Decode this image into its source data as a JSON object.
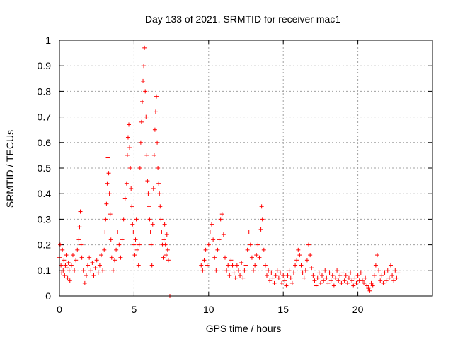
{
  "chart_data": {
    "type": "scatter",
    "title": "Day 133 of 2021, SRMTID for receiver mac1",
    "xlabel": "GPS time / hours",
    "ylabel": "SRMTID / TECUs",
    "xlim": [
      0,
      25
    ],
    "ylim": [
      0,
      1
    ],
    "xticks": [
      "0",
      "5",
      "10",
      "15",
      "20"
    ],
    "yticks": [
      "0",
      "0.1",
      "0.2",
      "0.3",
      "0.4",
      "0.5",
      "0.6",
      "0.7",
      "0.8",
      "0.9",
      "1"
    ],
    "grid": true,
    "marker": "+",
    "colors": {
      "series": "#ff0000"
    },
    "series": [
      {
        "name": "SRMTID",
        "points": [
          [
            0.0,
            0.15
          ],
          [
            0.05,
            0.2
          ],
          [
            0.1,
            0.12
          ],
          [
            0.15,
            0.09
          ],
          [
            0.2,
            0.18
          ],
          [
            0.25,
            0.1
          ],
          [
            0.3,
            0.14
          ],
          [
            0.35,
            0.08
          ],
          [
            0.4,
            0.12
          ],
          [
            0.45,
            0.16
          ],
          [
            0.5,
            0.11
          ],
          [
            0.55,
            0.07
          ],
          [
            0.6,
            0.13
          ],
          [
            0.65,
            0.1
          ],
          [
            0.7,
            0.06
          ],
          [
            0.8,
            0.12
          ],
          [
            0.9,
            0.16
          ],
          [
            1.0,
            0.1
          ],
          [
            1.1,
            0.14
          ],
          [
            1.2,
            0.18
          ],
          [
            1.3,
            0.22
          ],
          [
            1.35,
            0.27
          ],
          [
            1.4,
            0.33
          ],
          [
            1.45,
            0.2
          ],
          [
            1.5,
            0.15
          ],
          [
            1.6,
            0.1
          ],
          [
            1.7,
            0.05
          ],
          [
            1.8,
            0.08
          ],
          [
            1.9,
            0.12
          ],
          [
            2.0,
            0.15
          ],
          [
            2.1,
            0.1
          ],
          [
            2.2,
            0.13
          ],
          [
            2.3,
            0.08
          ],
          [
            2.4,
            0.11
          ],
          [
            2.5,
            0.14
          ],
          [
            2.6,
            0.09
          ],
          [
            2.7,
            0.12
          ],
          [
            2.8,
            0.16
          ],
          [
            2.9,
            0.1
          ],
          [
            3.0,
            0.18
          ],
          [
            3.05,
            0.25
          ],
          [
            3.1,
            0.3
          ],
          [
            3.15,
            0.36
          ],
          [
            3.2,
            0.44
          ],
          [
            3.25,
            0.54
          ],
          [
            3.3,
            0.48
          ],
          [
            3.35,
            0.4
          ],
          [
            3.4,
            0.32
          ],
          [
            3.45,
            0.22
          ],
          [
            3.5,
            0.15
          ],
          [
            3.6,
            0.1
          ],
          [
            3.7,
            0.14
          ],
          [
            3.8,
            0.18
          ],
          [
            3.9,
            0.25
          ],
          [
            4.0,
            0.2
          ],
          [
            4.1,
            0.15
          ],
          [
            4.2,
            0.22
          ],
          [
            4.3,
            0.3
          ],
          [
            4.4,
            0.38
          ],
          [
            4.5,
            0.44
          ],
          [
            4.55,
            0.55
          ],
          [
            4.6,
            0.62
          ],
          [
            4.65,
            0.67
          ],
          [
            4.7,
            0.58
          ],
          [
            4.75,
            0.5
          ],
          [
            4.8,
            0.42
          ],
          [
            4.85,
            0.35
          ],
          [
            4.9,
            0.28
          ],
          [
            4.95,
            0.25
          ],
          [
            5.0,
            0.2
          ],
          [
            5.05,
            0.16
          ],
          [
            5.1,
            0.22
          ],
          [
            5.15,
            0.3
          ],
          [
            5.2,
            0.18
          ],
          [
            5.3,
            0.12
          ],
          [
            5.35,
            0.2
          ],
          [
            5.4,
            0.5
          ],
          [
            5.45,
            0.6
          ],
          [
            5.5,
            0.68
          ],
          [
            5.55,
            0.76
          ],
          [
            5.6,
            0.84
          ],
          [
            5.65,
            0.9
          ],
          [
            5.7,
            0.97
          ],
          [
            5.75,
            0.8
          ],
          [
            5.8,
            0.7
          ],
          [
            5.85,
            0.55
          ],
          [
            5.9,
            0.45
          ],
          [
            5.95,
            0.4
          ],
          [
            6.0,
            0.35
          ],
          [
            6.05,
            0.3
          ],
          [
            6.1,
            0.25
          ],
          [
            6.15,
            0.2
          ],
          [
            6.2,
            0.12
          ],
          [
            6.25,
            0.28
          ],
          [
            6.3,
            0.42
          ],
          [
            6.35,
            0.55
          ],
          [
            6.4,
            0.65
          ],
          [
            6.45,
            0.72
          ],
          [
            6.5,
            0.78
          ],
          [
            6.55,
            0.6
          ],
          [
            6.6,
            0.5
          ],
          [
            6.65,
            0.44
          ],
          [
            6.7,
            0.4
          ],
          [
            6.75,
            0.35
          ],
          [
            6.8,
            0.3
          ],
          [
            6.85,
            0.25
          ],
          [
            6.9,
            0.2
          ],
          [
            6.95,
            0.15
          ],
          [
            7.0,
            0.22
          ],
          [
            7.05,
            0.28
          ],
          [
            7.1,
            0.2
          ],
          [
            7.15,
            0.16
          ],
          [
            7.2,
            0.24
          ],
          [
            7.25,
            0.18
          ],
          [
            7.3,
            0.14
          ],
          [
            7.4,
            0.0
          ],
          [
            9.5,
            0.12
          ],
          [
            9.6,
            0.1
          ],
          [
            9.7,
            0.14
          ],
          [
            9.8,
            0.18
          ],
          [
            9.9,
            0.12
          ],
          [
            10.0,
            0.2
          ],
          [
            10.1,
            0.25
          ],
          [
            10.2,
            0.28
          ],
          [
            10.3,
            0.22
          ],
          [
            10.4,
            0.15
          ],
          [
            10.5,
            0.1
          ],
          [
            10.6,
            0.18
          ],
          [
            10.7,
            0.22
          ],
          [
            10.8,
            0.3
          ],
          [
            10.9,
            0.32
          ],
          [
            11.0,
            0.24
          ],
          [
            11.1,
            0.15
          ],
          [
            11.2,
            0.1
          ],
          [
            11.3,
            0.12
          ],
          [
            11.4,
            0.08
          ],
          [
            11.5,
            0.14
          ],
          [
            11.6,
            0.12
          ],
          [
            11.7,
            0.09
          ],
          [
            11.8,
            0.07
          ],
          [
            11.9,
            0.12
          ],
          [
            12.0,
            0.1
          ],
          [
            12.1,
            0.08
          ],
          [
            12.2,
            0.13
          ],
          [
            12.3,
            0.07
          ],
          [
            12.4,
            0.1
          ],
          [
            12.5,
            0.12
          ],
          [
            12.6,
            0.18
          ],
          [
            12.7,
            0.25
          ],
          [
            12.8,
            0.2
          ],
          [
            12.9,
            0.15
          ],
          [
            13.0,
            0.1
          ],
          [
            13.1,
            0.12
          ],
          [
            13.2,
            0.16
          ],
          [
            13.3,
            0.2
          ],
          [
            13.4,
            0.15
          ],
          [
            13.5,
            0.26
          ],
          [
            13.55,
            0.35
          ],
          [
            13.6,
            0.3
          ],
          [
            13.7,
            0.18
          ],
          [
            13.8,
            0.12
          ],
          [
            13.9,
            0.08
          ],
          [
            14.0,
            0.1
          ],
          [
            14.1,
            0.06
          ],
          [
            14.2,
            0.09
          ],
          [
            14.3,
            0.07
          ],
          [
            14.4,
            0.05
          ],
          [
            14.5,
            0.08
          ],
          [
            14.6,
            0.1
          ],
          [
            14.7,
            0.07
          ],
          [
            14.8,
            0.09
          ],
          [
            14.9,
            0.05
          ],
          [
            15.0,
            0.08
          ],
          [
            15.1,
            0.06
          ],
          [
            15.2,
            0.04
          ],
          [
            15.3,
            0.08
          ],
          [
            15.4,
            0.1
          ],
          [
            15.5,
            0.07
          ],
          [
            15.6,
            0.05
          ],
          [
            15.7,
            0.09
          ],
          [
            15.8,
            0.12
          ],
          [
            15.9,
            0.14
          ],
          [
            16.0,
            0.18
          ],
          [
            16.1,
            0.16
          ],
          [
            16.2,
            0.12
          ],
          [
            16.3,
            0.09
          ],
          [
            16.4,
            0.07
          ],
          [
            16.5,
            0.1
          ],
          [
            16.6,
            0.14
          ],
          [
            16.7,
            0.2
          ],
          [
            16.8,
            0.16
          ],
          [
            16.9,
            0.11
          ],
          [
            17.0,
            0.08
          ],
          [
            17.1,
            0.06
          ],
          [
            17.2,
            0.04
          ],
          [
            17.3,
            0.07
          ],
          [
            17.4,
            0.09
          ],
          [
            17.5,
            0.05
          ],
          [
            17.6,
            0.08
          ],
          [
            17.7,
            0.06
          ],
          [
            17.8,
            0.1
          ],
          [
            17.9,
            0.07
          ],
          [
            18.0,
            0.05
          ],
          [
            18.1,
            0.09
          ],
          [
            18.2,
            0.06
          ],
          [
            18.3,
            0.08
          ],
          [
            18.4,
            0.04
          ],
          [
            18.5,
            0.07
          ],
          [
            18.6,
            0.1
          ],
          [
            18.7,
            0.06
          ],
          [
            18.8,
            0.08
          ],
          [
            18.9,
            0.05
          ],
          [
            19.0,
            0.09
          ],
          [
            19.1,
            0.06
          ],
          [
            19.2,
            0.08
          ],
          [
            19.3,
            0.05
          ],
          [
            19.4,
            0.07
          ],
          [
            19.5,
            0.09
          ],
          [
            19.6,
            0.06
          ],
          [
            19.7,
            0.04
          ],
          [
            19.8,
            0.07
          ],
          [
            19.9,
            0.05
          ],
          [
            20.0,
            0.08
          ],
          [
            20.1,
            0.06
          ],
          [
            20.2,
            0.09
          ],
          [
            20.3,
            0.06
          ],
          [
            20.4,
            0.05
          ],
          [
            20.5,
            0.07
          ],
          [
            20.6,
            0.04
          ],
          [
            20.7,
            0.03
          ],
          [
            20.8,
            0.02
          ],
          [
            20.9,
            0.05
          ],
          [
            21.0,
            0.04
          ],
          [
            21.1,
            0.08
          ],
          [
            21.2,
            0.12
          ],
          [
            21.3,
            0.16
          ],
          [
            21.4,
            0.1
          ],
          [
            21.5,
            0.06
          ],
          [
            21.6,
            0.08
          ],
          [
            21.7,
            0.05
          ],
          [
            21.8,
            0.09
          ],
          [
            21.9,
            0.06
          ],
          [
            22.0,
            0.1
          ],
          [
            22.1,
            0.07
          ],
          [
            22.2,
            0.12
          ],
          [
            22.3,
            0.08
          ],
          [
            22.4,
            0.06
          ],
          [
            22.5,
            0.1
          ],
          [
            22.6,
            0.07
          ],
          [
            22.7,
            0.09
          ]
        ]
      }
    ]
  }
}
